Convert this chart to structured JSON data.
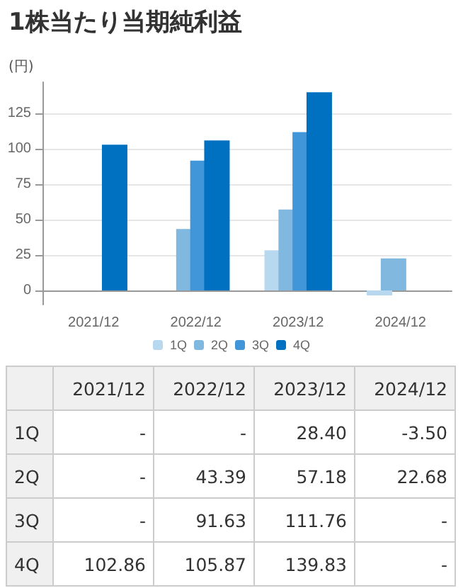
{
  "chart_data": {
    "type": "bar",
    "title": "1株当たり当期純利益",
    "ylabel": "(円)",
    "categories": [
      "2021/12",
      "2022/12",
      "2023/12",
      "2024/12"
    ],
    "series": [
      {
        "name": "1Q",
        "color": "#b8d8f0",
        "values": [
          null,
          null,
          28.4,
          -3.5
        ],
        "value_labels": [
          "-",
          "-",
          "28.40",
          "-3.50"
        ]
      },
      {
        "name": "2Q",
        "color": "#80b8e0",
        "values": [
          null,
          43.39,
          57.18,
          22.68
        ],
        "value_labels": [
          "-",
          "43.39",
          "57.18",
          "22.68"
        ]
      },
      {
        "name": "3Q",
        "color": "#4096d8",
        "values": [
          null,
          91.63,
          111.76,
          null
        ],
        "value_labels": [
          "-",
          "91.63",
          "111.76",
          "-"
        ]
      },
      {
        "name": "4Q",
        "color": "#0070c0",
        "values": [
          102.86,
          105.87,
          139.83,
          null
        ],
        "value_labels": [
          "102.86",
          "105.87",
          "139.83",
          "-"
        ]
      }
    ],
    "ylim": [
      -10,
      147
    ],
    "yticks": [
      0,
      25,
      50,
      75,
      100,
      125
    ],
    "grid": "y",
    "legend": "bottom"
  }
}
